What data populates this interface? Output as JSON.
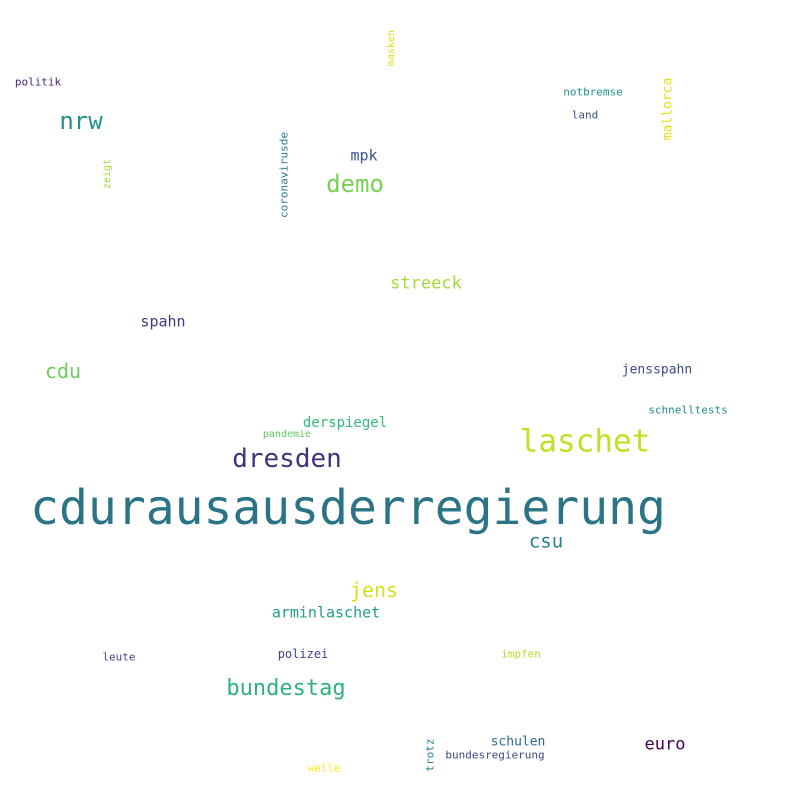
{
  "background": "#ffffff",
  "words": [
    {
      "text": "cdurausausderregierung",
      "color": "#2b7486",
      "orientation": "horizontal"
    },
    {
      "text": "laschet",
      "color": "#c2df23",
      "orientation": "horizontal"
    },
    {
      "text": "dresden",
      "color": "#46317e",
      "orientation": "horizontal"
    },
    {
      "text": "bundestag",
      "color": "#2db27d",
      "orientation": "horizontal"
    },
    {
      "text": "demo",
      "color": "#7ad151",
      "orientation": "horizontal"
    },
    {
      "text": "nrw",
      "color": "#21918c",
      "orientation": "horizontal"
    },
    {
      "text": "jens",
      "color": "#d2e21b",
      "orientation": "horizontal"
    },
    {
      "text": "cdu",
      "color": "#6ccd5a",
      "orientation": "horizontal"
    },
    {
      "text": "csu",
      "color": "#277f8e",
      "orientation": "horizontal"
    },
    {
      "text": "euro",
      "color": "#440154",
      "orientation": "horizontal"
    },
    {
      "text": "streeck",
      "color": "#a2da37",
      "orientation": "horizontal"
    },
    {
      "text": "spahn",
      "color": "#453781",
      "orientation": "horizontal"
    },
    {
      "text": "arminlaschet",
      "color": "#1f9e89",
      "orientation": "horizontal"
    },
    {
      "text": "derspiegel",
      "color": "#35b779",
      "orientation": "horizontal"
    },
    {
      "text": "mpk",
      "color": "#3b528b",
      "orientation": "horizontal"
    },
    {
      "text": "jensspahn",
      "color": "#3e4a89",
      "orientation": "horizontal"
    },
    {
      "text": "schulen",
      "color": "#31688e",
      "orientation": "horizontal"
    },
    {
      "text": "polizei",
      "color": "#404688",
      "orientation": "horizontal"
    },
    {
      "text": "mallorca",
      "color": "#dde318",
      "orientation": "vertical"
    },
    {
      "text": "schnelltests",
      "color": "#228c8d",
      "orientation": "horizontal"
    },
    {
      "text": "bundesregierung",
      "color": "#3f4788",
      "orientation": "horizontal"
    },
    {
      "text": "notbremse",
      "color": "#21918c",
      "orientation": "horizontal"
    },
    {
      "text": "impfen",
      "color": "#b5de2b",
      "orientation": "horizontal"
    },
    {
      "text": "coronavirusde",
      "color": "#2a788e",
      "orientation": "vertical"
    },
    {
      "text": "pandemie",
      "color": "#5ec962",
      "orientation": "horizontal"
    },
    {
      "text": "trotz",
      "color": "#287d8e",
      "orientation": "vertical"
    },
    {
      "text": "leute",
      "color": "#414487",
      "orientation": "horizontal"
    },
    {
      "text": "land",
      "color": "#3b528b",
      "orientation": "horizontal"
    },
    {
      "text": "welle",
      "color": "#fde725",
      "orientation": "horizontal"
    },
    {
      "text": "politik",
      "color": "#482878",
      "orientation": "horizontal"
    },
    {
      "text": "masken",
      "color": "#d8e219",
      "orientation": "vertical"
    },
    {
      "text": "zeigt",
      "color": "#a0da39",
      "orientation": "vertical"
    }
  ]
}
